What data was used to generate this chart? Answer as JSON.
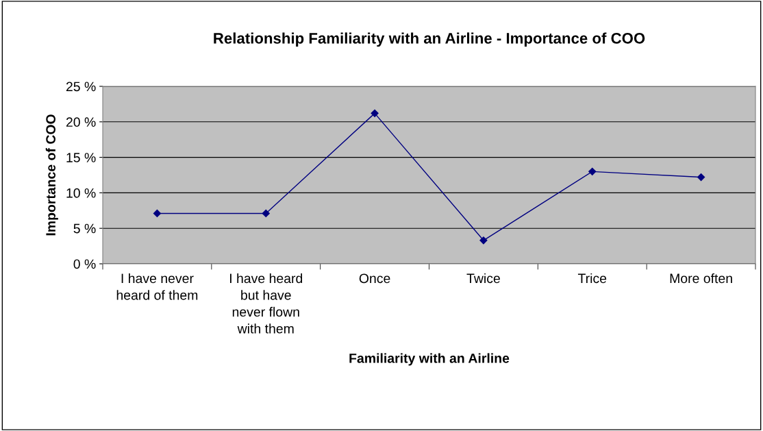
{
  "chart_data": {
    "type": "line",
    "title": "Relationship Familiarity with an Airline - Importance of COO",
    "xlabel": "Familiarity with an Airline",
    "ylabel": "Importance of COO",
    "categories": [
      "I have never\nheard of them",
      "I have heard\nbut have\nnever flown\nwith them",
      "Once",
      "Twice",
      "Trice",
      "More often"
    ],
    "series": [
      {
        "color": "#000080",
        "values": [
          7.1,
          7.1,
          21.2,
          3.3,
          13.0,
          12.2
        ]
      }
    ],
    "ylim": [
      0,
      25
    ],
    "yticks": [
      {
        "value": 0,
        "label": "0 %"
      },
      {
        "value": 5,
        "label": "5 %"
      },
      {
        "value": 10,
        "label": "10 %"
      },
      {
        "value": 15,
        "label": "15 %"
      },
      {
        "value": 20,
        "label": "20 %"
      },
      {
        "value": 25,
        "label": "25 %"
      }
    ],
    "grid": "y",
    "marker": "diamond",
    "line_style": "solid",
    "legend": false
  }
}
